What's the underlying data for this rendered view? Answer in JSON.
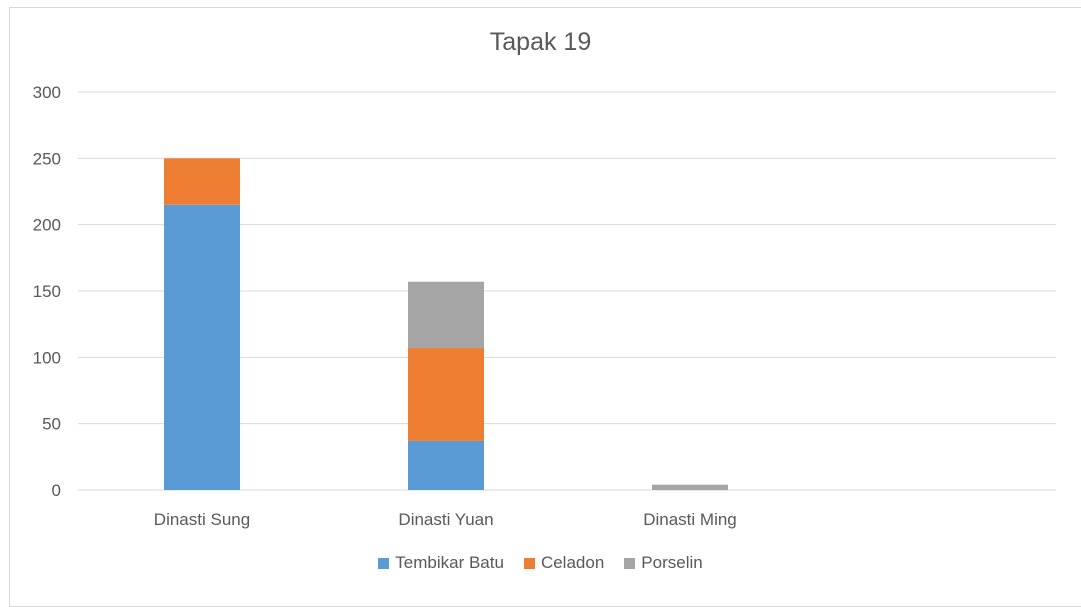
{
  "chart_data": {
    "type": "bar",
    "stacked": true,
    "title": "Tapak 19",
    "categories": [
      "Dinasti Sung",
      "Dinasti Yuan",
      "Dinasti Ming"
    ],
    "series": [
      {
        "name": "Tembikar Batu",
        "color": "#5b9bd5",
        "values": [
          215,
          37,
          0
        ]
      },
      {
        "name": "Celadon",
        "color": "#ed7d31",
        "values": [
          35,
          70,
          0
        ]
      },
      {
        "name": "Porselin",
        "color": "#a5a5a5",
        "values": [
          0,
          50,
          4
        ]
      }
    ],
    "ylim": [
      0,
      300
    ],
    "yticks": [
      "0",
      "50",
      "100",
      "150",
      "200",
      "250",
      "300"
    ],
    "grid": true,
    "legend": "bottom"
  }
}
